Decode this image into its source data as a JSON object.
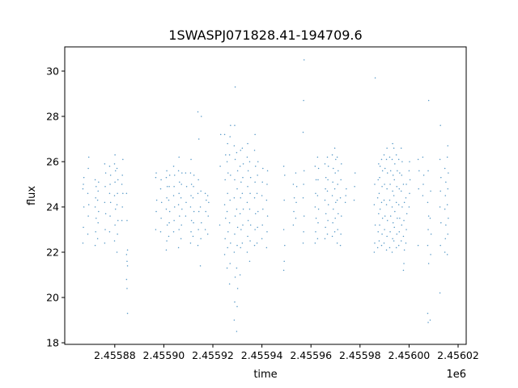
{
  "chart_data": {
    "type": "scatter",
    "title": "1SWASPJ071828.41-194709.6",
    "xlabel": "time",
    "ylabel": "flux",
    "x_offset_label": "1e6",
    "xlim": [
      2455859.6,
      2456023.3
    ],
    "ylim": [
      17.93,
      31.07
    ],
    "x_ticks": [
      2455880,
      2455900,
      2455920,
      2455940,
      2455960,
      2455980,
      2456000,
      2456020
    ],
    "x_tick_labels": [
      "2.45588",
      "2.45590",
      "2.45592",
      "2.45594",
      "2.45596",
      "2.45598",
      "2.45600",
      "2.45602"
    ],
    "y_ticks": [
      18,
      20,
      22,
      24,
      26,
      28,
      30
    ],
    "y_tick_labels": [
      "18",
      "20",
      "22",
      "24",
      "26",
      "28",
      "30"
    ],
    "grid": false,
    "marker_color": "#1f77b4",
    "nights": [
      {
        "t": 2455867.2,
        "flux": [
          22.4,
          23.1,
          24.0,
          24.8,
          25.0,
          25.3
        ]
      },
      {
        "t": 2455869.2,
        "flux": [
          22.8,
          23.6,
          24.1,
          24.6,
          25.7,
          26.2
        ]
      },
      {
        "t": 2455872.2,
        "flux": [
          22.3,
          22.9,
          23.5,
          24.0,
          24.4,
          24.9,
          25.2
        ]
      },
      {
        "t": 2455873.2,
        "flux": [
          22.6,
          23.3,
          23.8,
          24.3,
          24.7,
          25.1
        ]
      },
      {
        "t": 2455876.1,
        "flux": [
          22.4,
          23.0,
          23.7,
          24.2,
          24.9,
          25.5,
          25.9
        ]
      },
      {
        "t": 2455878.1,
        "flux": [
          22.9,
          23.6,
          24.2,
          24.6,
          25.0,
          25.4,
          25.8
        ]
      },
      {
        "t": 2455880.1,
        "flux": [
          22.5,
          23.2,
          23.9,
          24.5,
          25.1,
          25.6,
          25.9,
          26.3
        ]
      },
      {
        "t": 2455881.1,
        "flux": [
          22.0,
          22.8,
          23.4,
          24.1,
          24.6,
          25.2,
          25.7
        ]
      },
      {
        "t": 2455883.1,
        "flux": [
          23.4,
          24.0,
          24.6,
          25.0,
          25.4,
          26.1
        ]
      },
      {
        "t": 2455885.0,
        "flux": [
          24.6,
          23.4,
          22.1,
          21.9,
          21.6,
          21.4,
          20.8,
          20.4,
          19.3
        ]
      },
      {
        "t": 2455896.9,
        "flux": [
          23.0,
          23.8,
          24.3,
          25.3,
          25.5
        ]
      },
      {
        "t": 2455898.9,
        "flux": [
          22.9,
          23.5,
          24.2,
          24.8,
          25.2
        ]
      },
      {
        "t": 2455901.2,
        "flux": [
          22.1,
          22.5,
          23.2,
          23.9,
          24.4,
          24.9,
          25.3,
          25.6
        ]
      },
      {
        "t": 2455902.2,
        "flux": [
          22.7,
          23.3,
          23.8,
          24.3,
          24.9,
          25.4
        ]
      },
      {
        "t": 2455904.2,
        "flux": [
          22.9,
          23.4,
          24.0,
          24.5,
          24.9,
          25.4,
          25.8
        ]
      },
      {
        "t": 2455906.2,
        "flux": [
          22.2,
          23.0,
          23.6,
          24.1,
          24.6,
          25.1,
          25.6,
          26.2
        ]
      },
      {
        "t": 2455907.2,
        "flux": [
          22.6,
          23.2,
          23.9,
          24.4,
          25.0,
          25.5
        ]
      },
      {
        "t": 2455909.1,
        "flux": [
          23.6,
          24.2,
          24.9,
          25.5
        ]
      },
      {
        "t": 2455911.1,
        "flux": [
          22.4,
          22.9,
          23.4,
          24.0,
          24.5,
          25.0,
          25.5,
          26.1
        ]
      },
      {
        "t": 2455912.1,
        "flux": [
          22.7,
          23.3,
          23.8,
          24.4,
          24.9,
          25.4
        ]
      },
      {
        "t": 2455914.1,
        "flux": [
          22.3,
          23.0,
          23.8,
          24.6,
          25.2,
          27.0,
          28.2
        ]
      },
      {
        "t": 2455915.1,
        "flux": [
          21.4,
          22.6,
          23.3,
          24.0,
          24.7,
          28.0
        ]
      },
      {
        "t": 2455917.1,
        "flux": [
          23.0,
          23.8,
          24.3,
          24.6
        ]
      },
      {
        "t": 2455918.1,
        "flux": [
          22.8,
          23.6,
          24.2,
          24.5
        ]
      },
      {
        "t": 2455923.0,
        "flux": [
          23.2,
          25.8,
          27.2
        ]
      },
      {
        "t": 2455925.0,
        "flux": [
          21.9,
          22.6,
          23.5,
          24.1,
          25.2,
          26.3,
          27.2
        ]
      },
      {
        "t": 2455926.0,
        "flux": [
          21.3,
          22.2,
          22.9,
          23.8,
          24.6,
          25.5,
          26.0,
          26.8
        ]
      },
      {
        "t": 2455927.0,
        "flux": [
          20.6,
          21.5,
          22.4,
          23.3,
          24.3,
          25.4,
          26.3,
          27.1,
          27.6
        ]
      },
      {
        "t": 2455928.9,
        "flux": [
          19.0,
          19.8,
          20.9,
          22.0,
          22.8,
          23.6,
          24.4,
          25.2,
          26.1,
          26.7,
          27.6,
          29.3
        ]
      },
      {
        "t": 2455929.9,
        "flux": [
          18.5,
          19.6,
          20.4,
          21.3,
          22.3,
          23.1,
          23.9,
          24.8,
          25.6,
          26.4
        ]
      },
      {
        "t": 2455931.3,
        "flux": [
          21.0,
          22.2,
          23.0,
          23.7,
          24.4,
          25.1,
          25.8,
          26.5
        ]
      },
      {
        "t": 2455932.2,
        "flux": [
          22.4,
          23.2,
          23.9,
          24.6,
          25.3,
          25.9,
          26.6
        ]
      },
      {
        "t": 2455934.2,
        "flux": [
          22.0,
          22.7,
          23.4,
          24.2,
          24.9,
          25.6,
          26.2,
          26.8
        ]
      },
      {
        "t": 2455935.2,
        "flux": [
          21.6,
          22.5,
          23.2,
          23.9,
          24.6,
          25.3,
          26.0
        ]
      },
      {
        "t": 2455937.2,
        "flux": [
          22.3,
          23.0,
          23.7,
          24.4,
          25.1,
          25.8,
          26.5,
          27.2
        ]
      },
      {
        "t": 2455938.2,
        "flux": [
          22.4,
          23.1,
          23.8,
          24.6,
          25.4,
          26.0
        ]
      },
      {
        "t": 2455940.2,
        "flux": [
          22.6,
          23.2,
          23.9,
          24.5,
          25.1,
          25.7
        ]
      },
      {
        "t": 2455942.1,
        "flux": [
          22.2,
          22.9,
          23.6,
          24.3,
          25.0,
          25.6
        ]
      },
      {
        "t": 2455949.1,
        "flux": [
          21.2,
          21.6,
          22.3,
          23.0,
          24.3,
          25.4,
          25.8
        ]
      },
      {
        "t": 2455953.0,
        "flux": [
          23.2,
          23.8,
          24.4,
          25.0
        ]
      },
      {
        "t": 2455954.0,
        "flux": [
          23.5,
          24.2,
          24.9,
          25.5
        ]
      },
      {
        "t": 2455957.0,
        "flux": [
          22.4,
          22.9,
          23.6,
          24.4,
          25.0,
          25.6,
          27.3,
          28.7,
          30.5
        ]
      },
      {
        "t": 2455961.9,
        "flux": [
          22.4,
          22.9,
          23.5,
          24.0,
          24.6,
          25.2,
          25.8
        ]
      },
      {
        "t": 2455962.9,
        "flux": [
          22.6,
          23.3,
          23.9,
          24.5,
          25.2,
          25.7,
          26.2
        ]
      },
      {
        "t": 2455965.9,
        "flux": [
          22.6,
          23.1,
          23.7,
          24.3,
          24.8,
          25.3,
          25.9
        ]
      },
      {
        "t": 2455966.9,
        "flux": [
          22.8,
          23.4,
          24.1,
          24.7,
          25.2,
          25.8,
          26.2
        ]
      },
      {
        "t": 2455968.9,
        "flux": [
          22.7,
          23.3,
          23.9,
          24.5,
          25.1,
          25.7,
          26.3
        ]
      },
      {
        "t": 2455969.9,
        "flux": [
          22.9,
          23.5,
          24.2,
          24.8,
          25.5,
          26.1,
          26.6
        ]
      },
      {
        "t": 2455970.9,
        "flux": [
          22.4,
          23.0,
          23.7,
          24.3,
          25.0,
          25.6,
          26.2
        ]
      },
      {
        "t": 2455972.2,
        "flux": [
          22.3,
          22.8,
          23.6,
          24.4,
          25.2,
          25.9
        ]
      },
      {
        "t": 2455974.2,
        "flux": [
          24.2,
          24.5,
          24.8
        ]
      },
      {
        "t": 2455977.8,
        "flux": [
          24.3,
          24.9,
          25.5
        ]
      },
      {
        "t": 2455986.0,
        "flux": [
          22.0,
          22.4,
          23.2,
          24.1,
          25.0,
          29.7
        ]
      },
      {
        "t": 2455987.4,
        "flux": [
          22.2,
          22.9,
          23.7,
          24.4,
          25.2,
          25.9
        ]
      },
      {
        "t": 2455988.0,
        "flux": [
          22.5,
          23.2,
          23.9,
          24.6,
          25.3,
          25.8
        ]
      },
      {
        "t": 2455989.0,
        "flux": [
          22.3,
          22.8,
          23.5,
          24.2,
          24.9,
          25.6,
          26.1
        ]
      },
      {
        "t": 2455990.0,
        "flux": [
          22.4,
          23.0,
          23.6,
          24.3,
          25.0,
          25.7,
          26.3
        ]
      },
      {
        "t": 2455991.0,
        "flux": [
          22.1,
          22.7,
          23.4,
          24.1,
          24.8,
          25.5,
          26.1,
          26.6
        ]
      },
      {
        "t": 2455992.3,
        "flux": [
          22.2,
          22.9,
          23.6,
          24.3,
          25.0,
          25.6,
          26.2
        ]
      },
      {
        "t": 2455993.3,
        "flux": [
          22.0,
          22.6,
          23.3,
          24.0,
          24.7,
          25.4,
          26.1,
          26.8
        ]
      },
      {
        "t": 2455994.0,
        "flux": [
          22.5,
          23.1,
          23.8,
          24.5,
          25.2,
          25.9,
          26.6
        ]
      },
      {
        "t": 2455995.0,
        "flux": [
          22.2,
          22.8,
          23.5,
          24.2,
          24.9,
          25.6,
          26.3
        ]
      },
      {
        "t": 2455996.0,
        "flux": [
          22.3,
          22.9,
          23.5,
          24.1,
          24.8,
          25.5,
          26.1
        ]
      },
      {
        "t": 2455997.0,
        "flux": [
          22.5,
          23.2,
          24.0,
          24.7,
          25.4,
          26.0,
          26.6
        ]
      },
      {
        "t": 2455997.9,
        "flux": [
          21.2,
          21.5,
          22.1,
          22.7,
          23.4,
          24.2,
          25.0
        ]
      },
      {
        "t": 2455998.9,
        "flux": [
          22.4,
          23.0,
          23.7,
          24.4,
          25.0
        ]
      },
      {
        "t": 2456000.2,
        "flux": [
          24.0,
          24.6,
          25.2,
          25.6,
          26.0
        ]
      },
      {
        "t": 2456003.9,
        "flux": [
          22.3,
          24.8,
          25.6,
          26.1
        ]
      },
      {
        "t": 2456005.8,
        "flux": [
          24.5,
          25.0,
          25.4,
          26.2
        ]
      },
      {
        "t": 2456007.8,
        "flux": [
          19.3,
          18.9,
          21.5,
          22.3,
          23.0,
          23.6,
          24.2,
          25.6,
          28.7
        ]
      },
      {
        "t": 2456008.8,
        "flux": [
          19.0,
          21.9,
          22.8,
          23.5,
          24.7
        ]
      },
      {
        "t": 2456012.8,
        "flux": [
          20.2,
          22.3,
          23.3,
          24.0,
          24.7,
          25.3,
          26.1,
          27.6
        ]
      },
      {
        "t": 2456014.8,
        "flux": [
          22.0,
          22.6,
          23.2,
          23.9,
          24.5,
          25.1,
          25.7
        ]
      },
      {
        "t": 2456015.8,
        "flux": [
          21.9,
          22.8,
          23.5,
          24.1,
          24.8,
          25.5,
          26.2,
          26.7
        ]
      }
    ]
  }
}
